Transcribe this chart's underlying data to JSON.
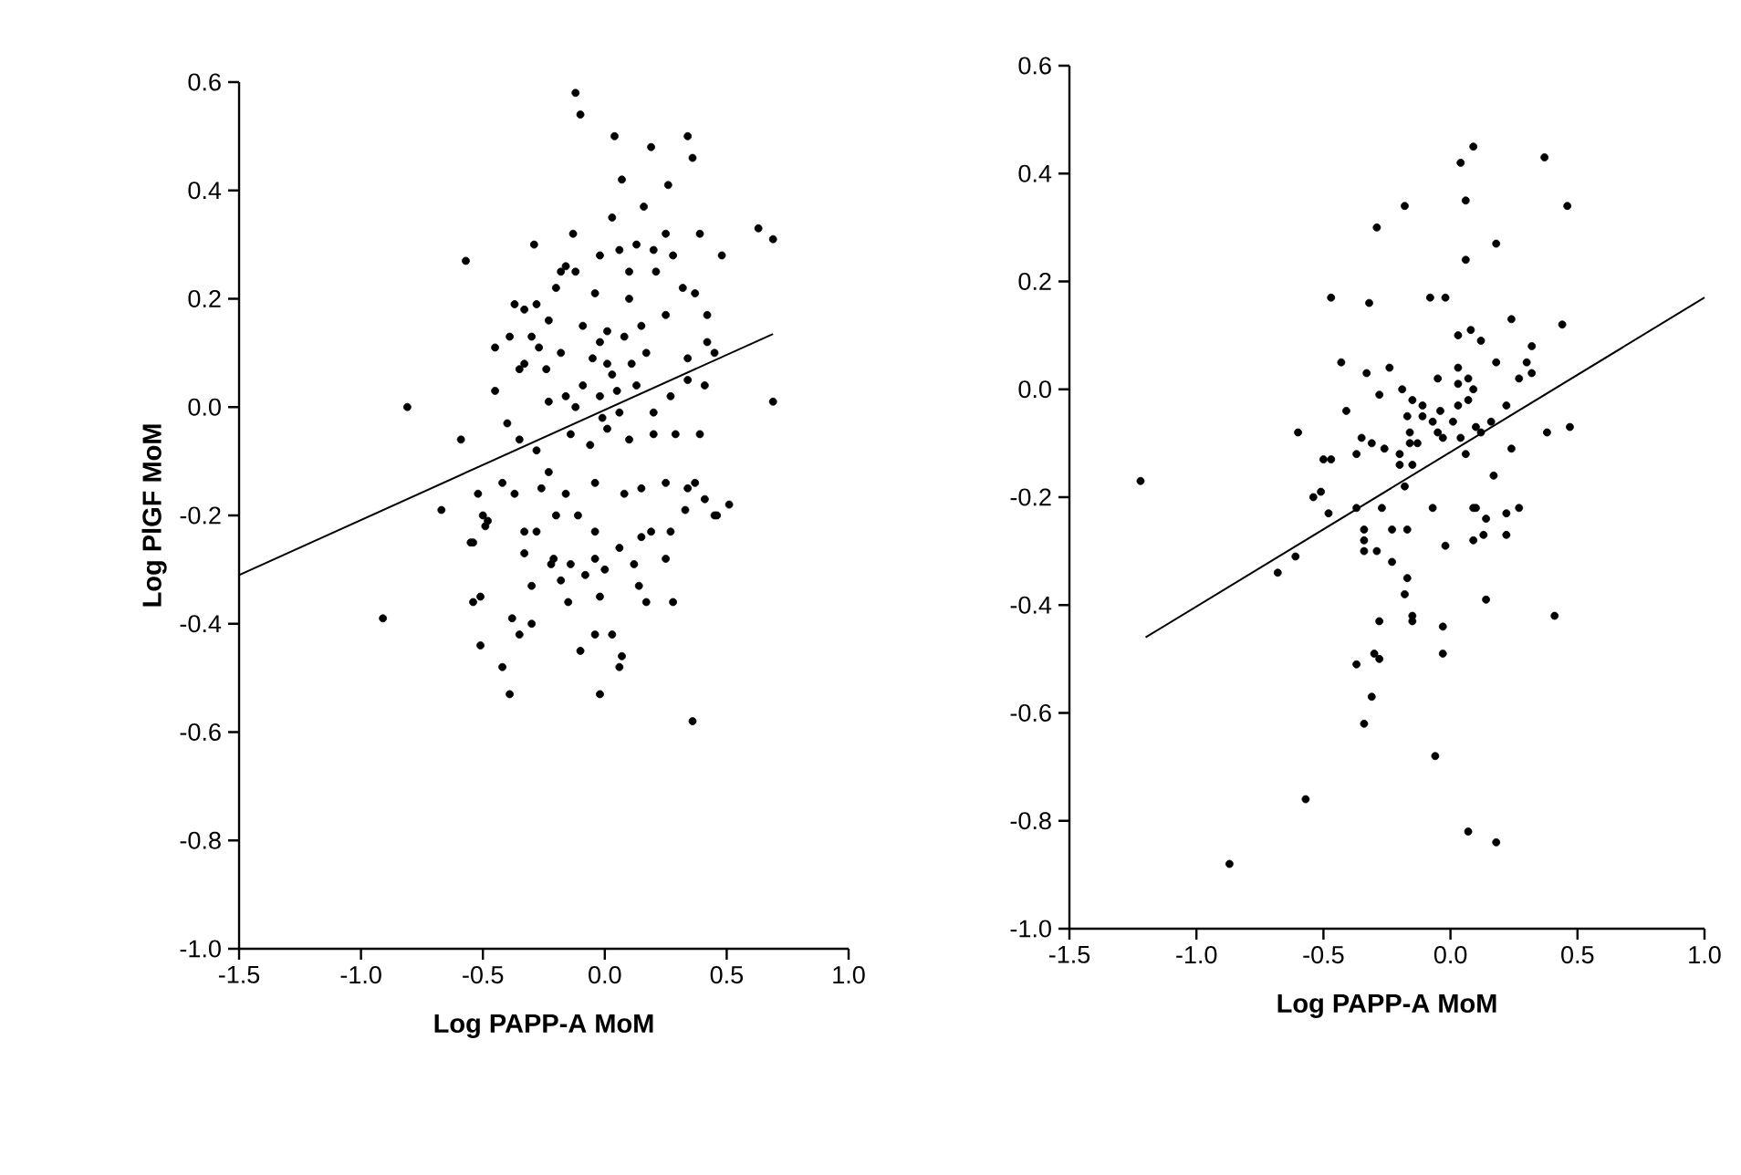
{
  "chart_data": [
    {
      "type": "scatter",
      "xlabel": "Log PAPP-A MoM",
      "ylabel": "Log PlGF MoM",
      "xlim": [
        -1.5,
        1.0
      ],
      "ylim": [
        -1.0,
        0.6
      ],
      "xticks": [
        {
          "value": -1.5,
          "label": "-1.5"
        },
        {
          "value": -1.0,
          "label": "-1.0"
        },
        {
          "value": -0.5,
          "label": "-0.5"
        },
        {
          "value": 0.0,
          "label": "0.0"
        },
        {
          "value": 0.5,
          "label": "0.5"
        },
        {
          "value": 1.0,
          "label": "1.0"
        }
      ],
      "yticks": [
        {
          "value": -1.0,
          "label": "-1.0"
        },
        {
          "value": -0.8,
          "label": "-0.8"
        },
        {
          "value": -0.6,
          "label": "-0.6"
        },
        {
          "value": -0.4,
          "label": "-0.4"
        },
        {
          "value": -0.2,
          "label": "-0.2"
        },
        {
          "value": 0.0,
          "label": "0.0"
        },
        {
          "value": 0.2,
          "label": "0.2"
        },
        {
          "value": 0.4,
          "label": "0.4"
        },
        {
          "value": 0.6,
          "label": "0.6"
        }
      ],
      "grid": false,
      "legend": false,
      "series": [
        {
          "marker": "circle",
          "color": "#000000",
          "x": [
            -0.12,
            -0.1,
            0.04,
            0.19,
            0.34,
            0.36,
            0.07,
            0.26,
            0.16,
            0.03,
            -0.13,
            0.63,
            0.69,
            -0.57,
            -0.29,
            -0.81,
            0.69,
            -0.59,
            -0.67,
            -0.45,
            -0.45,
            0.39,
            0.48,
            0.46,
            0.51,
            -0.91,
            -0.51,
            -0.42,
            -0.39,
            -0.02,
            0.36,
            -0.1,
            -0.04,
            0.03,
            0.06,
            0.07,
            -0.38,
            -0.35,
            -0.3,
            -0.54,
            -0.51,
            0.28,
            0.14,
            0.17,
            -0.15,
            -0.02,
            -0.3,
            -0.18,
            -0.55,
            -0.33,
            -0.22,
            -0.14,
            -0.08,
            0.0,
            0.06,
            0.12,
            0.25,
            0.45,
            0.41,
            0.33,
            0.27,
            0.19,
            -0.5,
            -0.49,
            -0.33,
            -0.28,
            -0.2,
            -0.11,
            -0.04,
            -0.37,
            -0.33,
            -0.28,
            -0.2,
            -0.16,
            -0.12,
            -0.02,
            0.06,
            0.1,
            0.2,
            0.28,
            0.32,
            0.37,
            0.42,
            0.42,
            0.45,
            0.34,
            0.34,
            0.41,
            -0.39,
            -0.33,
            -0.35,
            -0.3,
            -0.24,
            -0.18,
            -0.23,
            -0.16,
            -0.09,
            -0.02,
            0.01,
            0.08,
            0.15,
            0.25,
            -0.09,
            -0.02,
            0.06,
            0.13,
            0.2,
            0.27,
            -0.14,
            -0.06,
            0.01,
            0.1,
            0.2,
            0.29,
            0.39,
            -0.4,
            -0.35,
            -0.28,
            -0.23,
            -0.42,
            -0.37,
            -0.26,
            -0.16,
            -0.04,
            0.08,
            0.15,
            0.25,
            0.34,
            -0.52,
            -0.48,
            -0.54,
            -0.21,
            -0.04,
            0.15,
            0.37,
            -0.18,
            -0.04,
            0.01,
            0.1,
            0.21,
            0.25,
            0.13,
            -0.23,
            -0.27,
            0.03,
            -0.05,
            0.05,
            -0.01,
            0.11,
            -0.12,
            0.17
          ],
          "values": [
            0.58,
            0.54,
            0.5,
            0.48,
            0.5,
            0.46,
            0.42,
            0.41,
            0.37,
            0.35,
            0.32,
            0.33,
            0.31,
            0.27,
            0.3,
            0.0,
            0.01,
            -0.06,
            -0.19,
            0.11,
            0.03,
            0.32,
            0.28,
            -0.2,
            -0.18,
            -0.39,
            -0.44,
            -0.48,
            -0.53,
            -0.53,
            -0.58,
            -0.45,
            -0.42,
            -0.42,
            -0.48,
            -0.46,
            -0.39,
            -0.42,
            -0.4,
            -0.36,
            -0.35,
            -0.36,
            -0.33,
            -0.36,
            -0.36,
            -0.35,
            -0.33,
            -0.32,
            -0.25,
            -0.27,
            -0.29,
            -0.29,
            -0.31,
            -0.3,
            -0.26,
            -0.29,
            -0.28,
            -0.2,
            -0.17,
            -0.19,
            -0.23,
            -0.23,
            -0.2,
            -0.22,
            -0.23,
            -0.23,
            -0.2,
            -0.2,
            -0.23,
            0.19,
            0.18,
            0.19,
            0.22,
            0.26,
            0.25,
            0.28,
            0.29,
            0.25,
            0.29,
            0.28,
            0.22,
            0.21,
            0.17,
            0.12,
            0.1,
            0.09,
            0.05,
            0.04,
            0.13,
            0.08,
            0.07,
            0.13,
            0.07,
            0.1,
            0.01,
            0.02,
            0.15,
            0.12,
            0.08,
            0.13,
            0.15,
            0.17,
            0.04,
            0.02,
            -0.01,
            0.04,
            -0.01,
            0.02,
            -0.05,
            -0.07,
            -0.04,
            -0.06,
            -0.05,
            -0.05,
            -0.05,
            -0.03,
            -0.06,
            -0.08,
            -0.12,
            -0.14,
            -0.16,
            -0.15,
            -0.16,
            -0.14,
            -0.16,
            -0.15,
            -0.14,
            -0.15,
            -0.16,
            -0.21,
            -0.25,
            -0.28,
            -0.28,
            -0.24,
            -0.14,
            0.25,
            0.21,
            0.14,
            0.2,
            0.25,
            0.32,
            0.3,
            0.16,
            0.11,
            0.06,
            0.09,
            0.03,
            -0.02,
            0.08,
            0.0,
            0.1
          ]
        },
        {
          "type": "line",
          "marker": "none",
          "color": "#000000",
          "x": [
            -1.5,
            0.69
          ],
          "values": [
            -0.31,
            0.135
          ]
        }
      ]
    },
    {
      "type": "scatter",
      "xlabel": "Log PAPP-A MoM",
      "xlim": [
        -1.5,
        1.0
      ],
      "ylim": [
        -1.0,
        0.6
      ],
      "xticks": [
        {
          "value": -1.5,
          "label": "-1.5"
        },
        {
          "value": -1.0,
          "label": "-1.0"
        },
        {
          "value": -0.5,
          "label": "-0.5"
        },
        {
          "value": 0.0,
          "label": "0.0"
        },
        {
          "value": 0.5,
          "label": "0.5"
        },
        {
          "value": 1.0,
          "label": "1.0"
        }
      ],
      "yticks": [
        {
          "value": -1.0,
          "label": "-1.0"
        },
        {
          "value": -0.8,
          "label": "-0.8"
        },
        {
          "value": -0.6,
          "label": "-0.6"
        },
        {
          "value": -0.4,
          "label": "-0.4"
        },
        {
          "value": -0.2,
          "label": "-0.2"
        },
        {
          "value": 0.0,
          "label": "0.0"
        },
        {
          "value": 0.2,
          "label": "0.2"
        },
        {
          "value": 0.4,
          "label": "0.4"
        },
        {
          "value": 0.6,
          "label": "0.6"
        }
      ],
      "grid": false,
      "legend": false,
      "series": [
        {
          "marker": "circle",
          "color": "#000000",
          "x": [
            0.09,
            0.04,
            0.37,
            -0.18,
            0.06,
            0.46,
            -0.29,
            0.18,
            0.06,
            -0.47,
            -0.32,
            -0.08,
            -0.02,
            0.24,
            0.44,
            0.03,
            0.08,
            0.12,
            0.32,
            -0.43,
            0.18,
            0.3,
            0.32,
            0.27,
            -0.33,
            -0.24,
            0.03,
            0.03,
            0.07,
            0.09,
            -0.19,
            -0.05,
            -0.28,
            -0.41,
            -0.15,
            -0.11,
            0.03,
            0.07,
            0.22,
            -0.6,
            -0.17,
            -0.11,
            -0.04,
            -0.07,
            0.01,
            0.1,
            0.16,
            0.12,
            -0.16,
            -0.13,
            -0.16,
            -0.05,
            -0.03,
            -0.35,
            -0.31,
            -0.26,
            -0.2,
            -0.2,
            -0.15,
            0.04,
            0.06,
            0.24,
            0.38,
            0.47,
            -0.5,
            -0.47,
            -0.37,
            -0.18,
            0.17,
            -0.54,
            -0.51,
            -0.48,
            -0.37,
            -0.27,
            -0.07,
            0.09,
            0.1,
            0.14,
            0.22,
            0.27,
            -0.34,
            -0.34,
            -0.34,
            -0.29,
            -0.23,
            -0.17,
            -0.02,
            0.09,
            0.13,
            0.22,
            -0.61,
            -0.68,
            -0.23,
            -0.17,
            -0.18,
            0.14,
            -1.22,
            0.41,
            -0.28,
            -0.15,
            -0.15,
            -0.03,
            -0.03,
            -0.37,
            -0.3,
            -0.28,
            -0.31,
            -0.34,
            -0.06,
            -0.57,
            0.07,
            0.18,
            -0.87
          ],
          "values": [
            0.45,
            0.42,
            0.43,
            0.34,
            0.35,
            0.34,
            0.3,
            0.27,
            0.24,
            0.17,
            0.16,
            0.17,
            0.17,
            0.13,
            0.12,
            0.1,
            0.11,
            0.09,
            0.08,
            0.05,
            0.05,
            0.05,
            0.03,
            0.02,
            0.03,
            0.04,
            0.04,
            0.01,
            0.02,
            0.0,
            0.0,
            0.02,
            -0.01,
            -0.04,
            -0.02,
            -0.03,
            -0.03,
            -0.02,
            -0.03,
            -0.08,
            -0.05,
            -0.05,
            -0.04,
            -0.06,
            -0.06,
            -0.07,
            -0.06,
            -0.08,
            -0.08,
            -0.1,
            -0.1,
            -0.08,
            -0.09,
            -0.09,
            -0.1,
            -0.11,
            -0.12,
            -0.14,
            -0.14,
            -0.09,
            -0.12,
            -0.11,
            -0.08,
            -0.07,
            -0.13,
            -0.13,
            -0.12,
            -0.18,
            -0.16,
            -0.2,
            -0.19,
            -0.23,
            -0.22,
            -0.22,
            -0.22,
            -0.22,
            -0.22,
            -0.24,
            -0.23,
            -0.22,
            -0.26,
            -0.28,
            -0.3,
            -0.3,
            -0.26,
            -0.26,
            -0.29,
            -0.28,
            -0.27,
            -0.27,
            -0.31,
            -0.34,
            -0.32,
            -0.35,
            -0.38,
            -0.39,
            -0.17,
            -0.42,
            -0.43,
            -0.43,
            -0.42,
            -0.44,
            -0.49,
            -0.51,
            -0.49,
            -0.5,
            -0.57,
            -0.62,
            -0.68,
            -0.76,
            -0.82,
            -0.84,
            -0.88
          ]
        },
        {
          "type": "line",
          "marker": "none",
          "color": "#000000",
          "x": [
            -1.2,
            1.0
          ],
          "values": [
            -0.46,
            0.17
          ]
        }
      ]
    }
  ]
}
